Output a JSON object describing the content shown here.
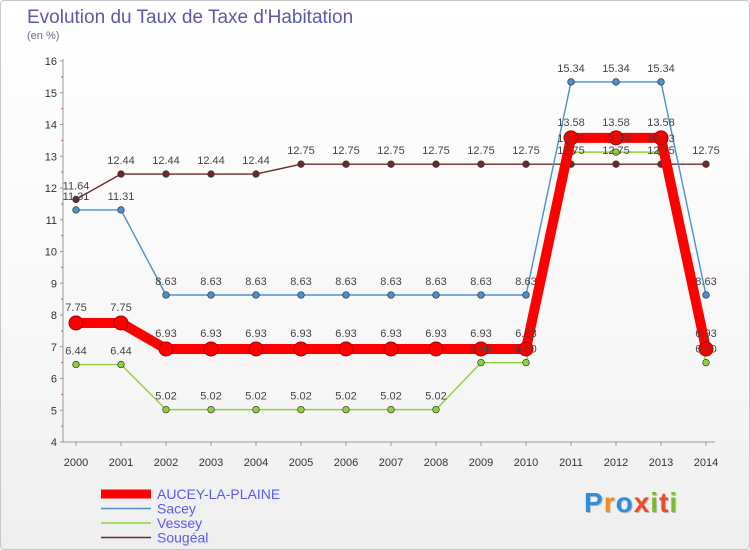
{
  "header": {
    "title": "Evolution du Taux de Taxe d'Habitation",
    "unit_label": "(en %)"
  },
  "logo": {
    "letters": [
      "P",
      "r",
      "o",
      "x",
      "i",
      "t",
      "i"
    ],
    "colors": [
      "#2e8fd8",
      "#f28c1c",
      "#2e8fd8",
      "#e84c2a",
      "#7dbb2a",
      "#e84c2a",
      "#7dbb2a"
    ]
  },
  "chart_data": {
    "type": "line",
    "title": "Evolution du Taux de Taxe d'Habitation",
    "ylabel": "(en %)",
    "xlabel": "",
    "x": [
      2000,
      2001,
      2002,
      2003,
      2004,
      2005,
      2006,
      2007,
      2008,
      2009,
      2010,
      2011,
      2012,
      2013,
      2014
    ],
    "ylim": [
      4,
      16
    ],
    "yticks": [
      4,
      5,
      6,
      7,
      8,
      9,
      10,
      11,
      12,
      13,
      14,
      15,
      16
    ],
    "grid": false,
    "legend_position": "bottom-left",
    "series": [
      {
        "name": "Sougéal",
        "color": "#6b2a2a",
        "values": [
          11.64,
          12.44,
          12.44,
          12.44,
          12.44,
          12.75,
          12.75,
          12.75,
          12.75,
          12.75,
          12.75,
          12.75,
          12.75,
          12.75,
          12.75
        ],
        "labels": [
          "11.64",
          "12.44",
          "12.44",
          "12.44",
          "12.44",
          "12.75",
          "12.75",
          "12.75",
          "12.75",
          "12.75",
          "12.75",
          "12.75",
          "12.75",
          "12.75",
          "12.75"
        ]
      },
      {
        "name": "Sacey",
        "color": "#4d8fd0",
        "values": [
          11.31,
          11.31,
          8.63,
          8.63,
          8.63,
          8.63,
          8.63,
          8.63,
          8.63,
          8.63,
          8.63,
          15.34,
          15.34,
          15.34,
          8.63
        ],
        "labels": [
          "11.31",
          "11.31",
          "8.63",
          "8.63",
          "8.63",
          "8.63",
          "8.63",
          "8.63",
          "8.63",
          "8.63",
          "8.63",
          "15.34",
          "15.34",
          "15.34",
          "8.63"
        ]
      },
      {
        "name": "Vessey",
        "color": "#8fd13a",
        "values": [
          6.44,
          6.44,
          5.02,
          5.02,
          5.02,
          5.02,
          5.02,
          5.02,
          5.02,
          6.5,
          6.5,
          13.13,
          13.13,
          13.13,
          6.5
        ],
        "labels": [
          "6.44",
          "6.44",
          "5.02",
          "5.02",
          "5.02",
          "5.02",
          "5.02",
          "5.02",
          "5.02",
          "6.50",
          "6.50",
          "13.13",
          "13.13",
          "13.13",
          "6.50"
        ]
      },
      {
        "name": "AUCEY-LA-PLAINE",
        "color": "#ff0000",
        "values": [
          7.75,
          7.75,
          6.93,
          6.93,
          6.93,
          6.93,
          6.93,
          6.93,
          6.93,
          6.93,
          6.93,
          13.58,
          13.58,
          13.58,
          6.93
        ],
        "labels": [
          "7.75",
          "7.75",
          "6.93",
          "6.93",
          "6.93",
          "6.93",
          "6.93",
          "6.93",
          "6.93",
          "6.93",
          "6.93",
          "13.58",
          "13.58",
          "13.58",
          "6.93"
        ]
      }
    ],
    "legend": [
      {
        "name": "AUCEY-LA-PLAINE",
        "color": "#ff0000",
        "text_color": "#5a5af0"
      },
      {
        "name": "Sacey",
        "color": "#4d8fd0",
        "text_color": "#5a5af0"
      },
      {
        "name": "Vessey",
        "color": "#8fd13a",
        "text_color": "#5a5af0"
      },
      {
        "name": "Sougéal",
        "color": "#6b2a2a",
        "text_color": "#5a5af0"
      }
    ]
  }
}
